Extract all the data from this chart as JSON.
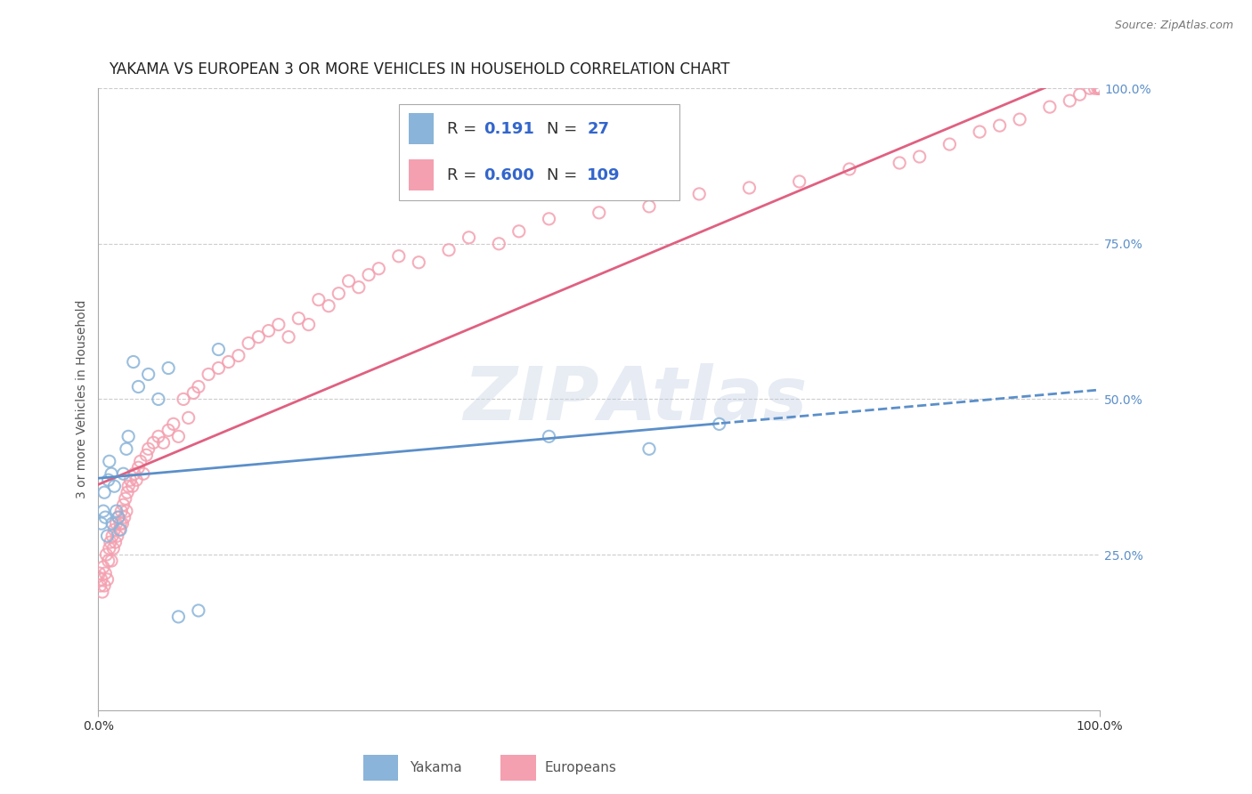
{
  "title": "YAKAMA VS EUROPEAN 3 OR MORE VEHICLES IN HOUSEHOLD CORRELATION CHART",
  "source": "Source: ZipAtlas.com",
  "ylabel": "3 or more Vehicles in Household",
  "xlim": [
    0,
    1
  ],
  "ylim": [
    0,
    1
  ],
  "y_tick_positions": [
    0.25,
    0.5,
    0.75,
    1.0
  ],
  "y_tick_labels": [
    "25.0%",
    "50.0%",
    "75.0%",
    "100.0%"
  ],
  "x_tick_labels": [
    "0.0%",
    "100.0%"
  ],
  "watermark_text": "ZIPAtlas",
  "legend_R_yakama": "0.191",
  "legend_N_yakama": "27",
  "legend_R_europeans": "0.600",
  "legend_N_europeans": "109",
  "yakama_color": "#8ab4d9",
  "europeans_color": "#f4a0b0",
  "yakama_line_color": "#5b8fc9",
  "europeans_line_color": "#e06080",
  "grid_color": "#cccccc",
  "background_color": "#ffffff",
  "title_fontsize": 12,
  "axis_label_fontsize": 10,
  "tick_fontsize": 10,
  "source_fontsize": 9,
  "legend_fontsize": 13,
  "marker_size": 90,
  "yakama_x": [
    0.003,
    0.005,
    0.006,
    0.007,
    0.009,
    0.01,
    0.011,
    0.013,
    0.014,
    0.016,
    0.018,
    0.02,
    0.022,
    0.025,
    0.028,
    0.03,
    0.035,
    0.04,
    0.05,
    0.06,
    0.07,
    0.08,
    0.1,
    0.12,
    0.45,
    0.55,
    0.62
  ],
  "yakama_y": [
    0.3,
    0.32,
    0.35,
    0.31,
    0.28,
    0.37,
    0.4,
    0.38,
    0.3,
    0.36,
    0.32,
    0.31,
    0.29,
    0.38,
    0.42,
    0.44,
    0.56,
    0.52,
    0.54,
    0.5,
    0.55,
    0.15,
    0.16,
    0.58,
    0.44,
    0.42,
    0.46
  ],
  "europeans_x": [
    0.001,
    0.002,
    0.003,
    0.004,
    0.005,
    0.006,
    0.007,
    0.008,
    0.009,
    0.01,
    0.011,
    0.012,
    0.013,
    0.014,
    0.015,
    0.016,
    0.017,
    0.018,
    0.019,
    0.02,
    0.021,
    0.022,
    0.023,
    0.024,
    0.025,
    0.026,
    0.027,
    0.028,
    0.029,
    0.03,
    0.032,
    0.034,
    0.036,
    0.038,
    0.04,
    0.042,
    0.045,
    0.048,
    0.05,
    0.055,
    0.06,
    0.065,
    0.07,
    0.075,
    0.08,
    0.085,
    0.09,
    0.095,
    0.1,
    0.11,
    0.12,
    0.13,
    0.14,
    0.15,
    0.16,
    0.17,
    0.18,
    0.19,
    0.2,
    0.21,
    0.22,
    0.23,
    0.24,
    0.25,
    0.26,
    0.27,
    0.28,
    0.3,
    0.32,
    0.35,
    0.37,
    0.4,
    0.42,
    0.45,
    0.5,
    0.55,
    0.6,
    0.65,
    0.7,
    0.75,
    0.8,
    0.82,
    0.85,
    0.88,
    0.9,
    0.92,
    0.95,
    0.97,
    0.98,
    0.99,
    0.995,
    0.998,
    1.0,
    1.0,
    1.0,
    1.0,
    1.0,
    1.0,
    1.0,
    1.0,
    1.0,
    1.0,
    1.0,
    1.0,
    1.0,
    1.0,
    1.0,
    1.0,
    1.0
  ],
  "europeans_y": [
    0.22,
    0.2,
    0.21,
    0.19,
    0.23,
    0.2,
    0.22,
    0.25,
    0.21,
    0.24,
    0.26,
    0.27,
    0.24,
    0.28,
    0.26,
    0.29,
    0.27,
    0.3,
    0.28,
    0.31,
    0.29,
    0.3,
    0.32,
    0.3,
    0.33,
    0.31,
    0.34,
    0.32,
    0.35,
    0.36,
    0.37,
    0.36,
    0.38,
    0.37,
    0.39,
    0.4,
    0.38,
    0.41,
    0.42,
    0.43,
    0.44,
    0.43,
    0.45,
    0.46,
    0.44,
    0.5,
    0.47,
    0.51,
    0.52,
    0.54,
    0.55,
    0.56,
    0.57,
    0.59,
    0.6,
    0.61,
    0.62,
    0.6,
    0.63,
    0.62,
    0.66,
    0.65,
    0.67,
    0.69,
    0.68,
    0.7,
    0.71,
    0.73,
    0.72,
    0.74,
    0.76,
    0.75,
    0.77,
    0.79,
    0.8,
    0.81,
    0.83,
    0.84,
    0.85,
    0.87,
    0.88,
    0.89,
    0.91,
    0.93,
    0.94,
    0.95,
    0.97,
    0.98,
    0.99,
    1.0,
    1.0,
    1.0,
    1.0,
    1.0,
    1.0,
    1.0,
    1.0,
    1.0,
    1.0,
    1.0,
    1.0,
    1.0,
    1.0,
    1.0,
    1.0,
    1.0,
    1.0,
    1.0,
    1.0
  ]
}
